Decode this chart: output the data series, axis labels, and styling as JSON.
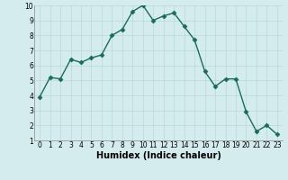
{
  "x": [
    0,
    1,
    2,
    3,
    4,
    5,
    6,
    7,
    8,
    9,
    10,
    11,
    12,
    13,
    14,
    15,
    16,
    17,
    18,
    19,
    20,
    21,
    22,
    23
  ],
  "y": [
    3.9,
    5.2,
    5.1,
    6.4,
    6.2,
    6.5,
    6.7,
    8.0,
    8.4,
    9.6,
    10.0,
    9.0,
    9.3,
    9.5,
    8.6,
    7.7,
    5.6,
    4.6,
    5.1,
    5.1,
    2.9,
    1.6,
    2.0,
    1.4
  ],
  "line_color": "#1a6b5a",
  "marker": "D",
  "marker_size": 2.5,
  "bg_color": "#d4ecee",
  "grid_color": "#b8d8da",
  "xlabel": "Humidex (Indice chaleur)",
  "xlim": [
    -0.5,
    23.5
  ],
  "ylim": [
    1,
    10
  ],
  "yticks": [
    1,
    2,
    3,
    4,
    5,
    6,
    7,
    8,
    9,
    10
  ],
  "xticks": [
    0,
    1,
    2,
    3,
    4,
    5,
    6,
    7,
    8,
    9,
    10,
    11,
    12,
    13,
    14,
    15,
    16,
    17,
    18,
    19,
    20,
    21,
    22,
    23
  ],
  "tick_fontsize": 5.5,
  "xlabel_fontsize": 7,
  "linewidth": 1.0
}
